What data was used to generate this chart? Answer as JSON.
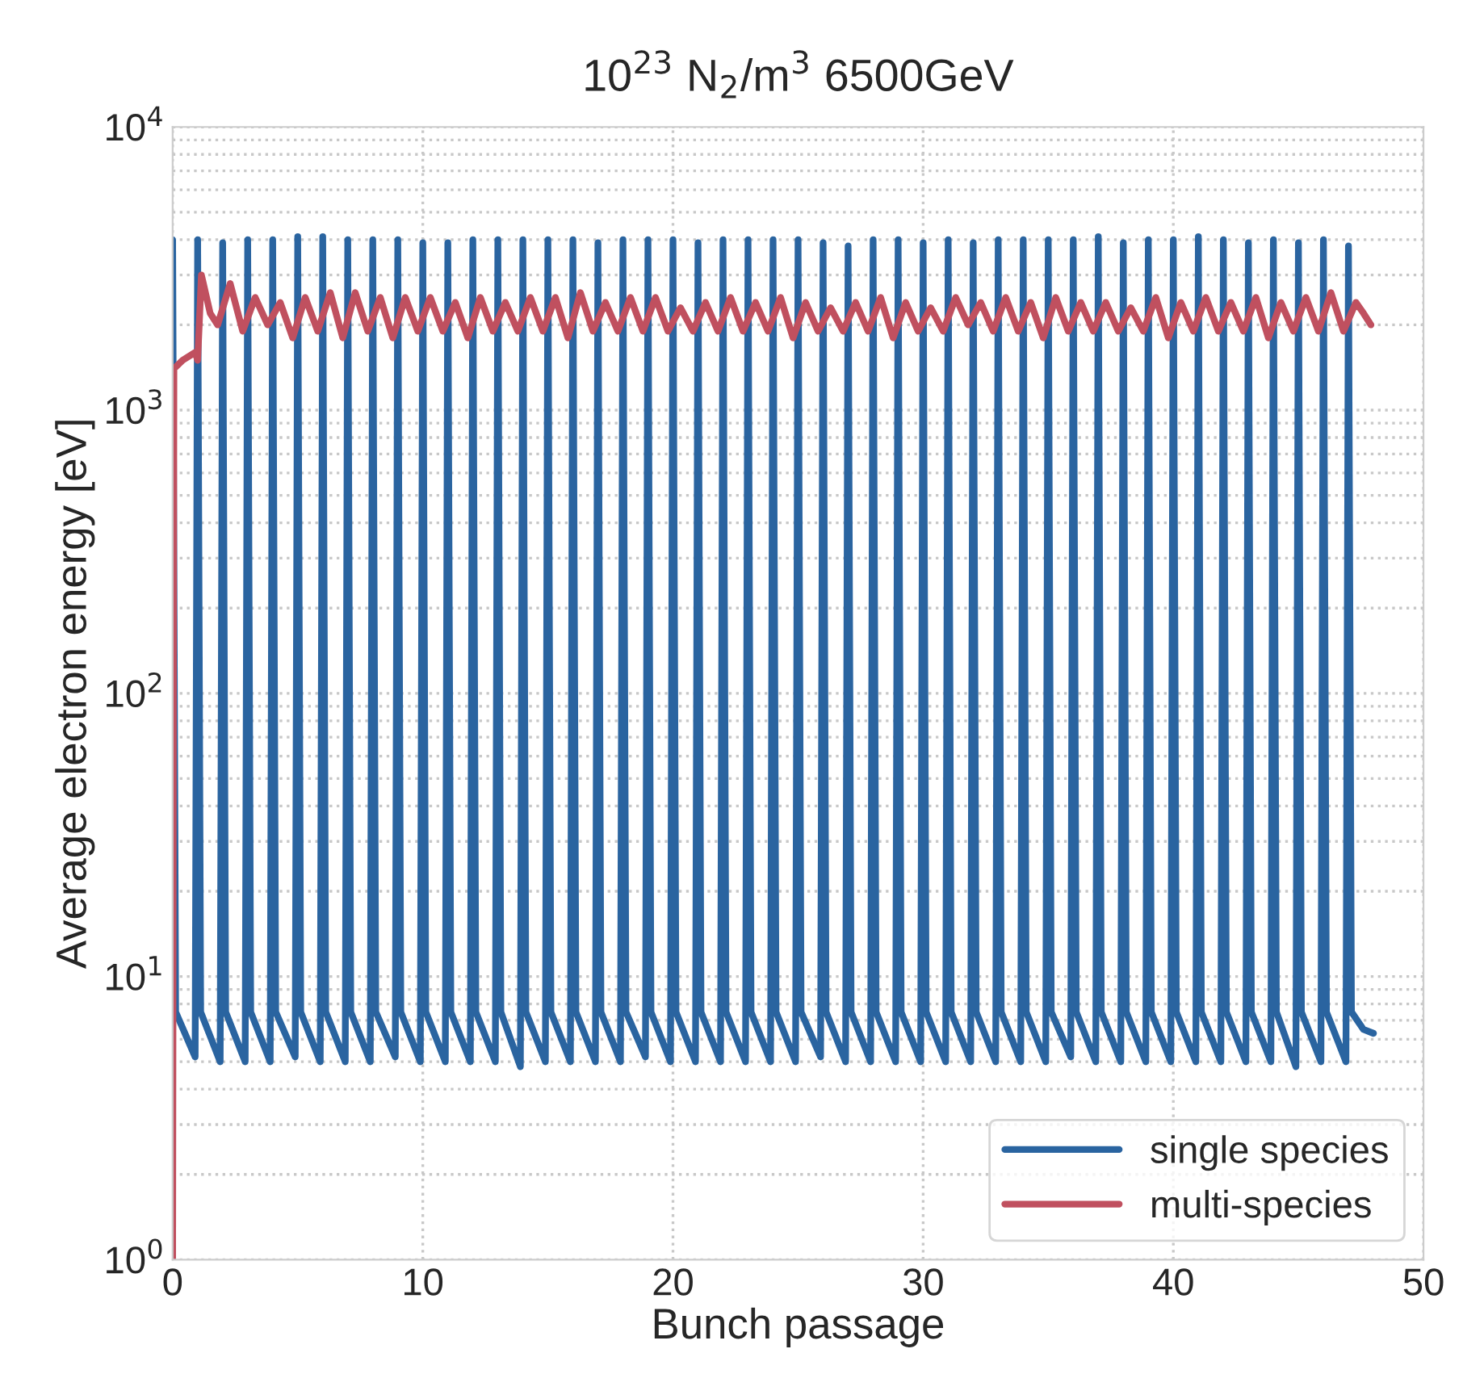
{
  "chart_data": {
    "type": "line",
    "title": "10$^{23}$ N$_{2}$/m$^{3}$ 6500GeV",
    "xlabel": "Bunch passage",
    "ylabel": "Average electron energy [eV]",
    "log": "y",
    "xlim": [
      0,
      50
    ],
    "xticks": [
      0,
      10,
      20,
      30,
      40,
      50
    ],
    "ylim": [
      1,
      10000
    ],
    "yticks": [
      {
        "value": 1,
        "label": "10$^{0}$"
      },
      {
        "value": 10,
        "label": "10$^{1}$"
      },
      {
        "value": 100,
        "label": "10$^{2}$"
      },
      {
        "value": 1000,
        "label": "10$^{3}$"
      },
      {
        "value": 10000,
        "label": "10$^{4}$"
      }
    ],
    "grid": true,
    "legend": "bottom right",
    "line_style": "solid",
    "marker": "none",
    "series": [
      {
        "name": "single species",
        "color": "#2a64a0",
        "x": [
          0,
          0.12,
          0.9,
          1,
          1.12,
          1.9,
          2,
          2.12,
          2.9,
          3,
          3.12,
          3.9,
          4,
          4.12,
          4.9,
          5,
          5.12,
          5.9,
          6,
          6.12,
          6.9,
          7,
          7.12,
          7.9,
          8,
          8.12,
          8.9,
          9,
          9.12,
          9.9,
          10,
          10.12,
          10.9,
          11,
          11.12,
          11.9,
          12,
          12.12,
          12.9,
          13,
          13.12,
          13.9,
          14,
          14.12,
          14.9,
          15,
          15.12,
          15.9,
          16,
          16.12,
          16.9,
          17,
          17.12,
          17.9,
          18,
          18.12,
          18.9,
          19,
          19.12,
          19.9,
          20,
          20.12,
          20.9,
          21,
          21.12,
          21.9,
          22,
          22.12,
          22.9,
          23,
          23.12,
          23.9,
          24,
          24.12,
          24.9,
          25,
          25.12,
          25.9,
          26,
          26.12,
          26.9,
          27,
          27.12,
          27.9,
          28,
          28.12,
          28.9,
          29,
          29.12,
          29.9,
          30,
          30.12,
          30.9,
          31,
          31.12,
          31.9,
          32,
          32.12,
          32.9,
          33,
          33.12,
          33.9,
          34,
          34.12,
          34.9,
          35,
          35.12,
          35.9,
          36,
          36.12,
          36.9,
          37,
          37.12,
          37.9,
          38,
          38.12,
          38.9,
          39,
          39.12,
          39.9,
          40,
          40.12,
          40.9,
          41,
          41.12,
          41.9,
          42,
          42.12,
          42.9,
          43,
          43.12,
          43.9,
          44,
          44.12,
          44.9,
          45,
          45.12,
          45.9,
          46,
          46.12,
          46.9,
          47,
          47.12,
          47.6,
          48
        ],
        "values": [
          4000,
          7.5,
          5.2,
          4000,
          7.5,
          5,
          3900,
          7.5,
          5,
          4000,
          7.5,
          5,
          4000,
          7.5,
          5.2,
          4100,
          7.5,
          5,
          4100,
          7.5,
          5,
          4000,
          7.5,
          5,
          4000,
          7.5,
          5.2,
          4000,
          7.5,
          5,
          3900,
          7.5,
          5,
          3900,
          7.5,
          5,
          4000,
          7.5,
          5,
          4000,
          7.5,
          4.8,
          4000,
          7.5,
          5,
          4000,
          7.5,
          5,
          4000,
          7.5,
          5,
          3900,
          7.5,
          5,
          4000,
          7.5,
          5.2,
          4000,
          7.5,
          5,
          4000,
          7.5,
          5,
          3900,
          7.5,
          5,
          4000,
          7.5,
          5,
          4000,
          7.5,
          5,
          4000,
          7.5,
          5,
          4000,
          7.5,
          5.2,
          3900,
          7.5,
          5,
          3800,
          7.5,
          5,
          4000,
          7.5,
          5,
          4000,
          7.5,
          5,
          3900,
          7.5,
          5,
          4000,
          7.5,
          5,
          3900,
          7.5,
          5,
          4000,
          7.5,
          5,
          4000,
          7.5,
          5,
          4000,
          7.5,
          5.2,
          4000,
          7.5,
          5,
          4100,
          7.5,
          5,
          3900,
          7.5,
          5,
          4000,
          7.5,
          5,
          4000,
          7.5,
          5,
          4100,
          7.5,
          5,
          4000,
          7.5,
          5,
          3900,
          7.5,
          5,
          4000,
          7.5,
          4.8,
          3900,
          7.5,
          5,
          4000,
          7.5,
          5,
          3800,
          7.5,
          6.5,
          6.3
        ]
      },
      {
        "name": "multi-species",
        "color": "#c0505f",
        "x": [
          0,
          0.05,
          0.4,
          0.9,
          1.0,
          1.15,
          1.5,
          1.8,
          2.3,
          2.8,
          3.3,
          3.8,
          4.3,
          4.8,
          5.3,
          5.8,
          6.3,
          6.8,
          7.3,
          7.8,
          8.3,
          8.8,
          9.3,
          9.8,
          10.3,
          10.8,
          11.3,
          11.8,
          12.3,
          12.8,
          13.3,
          13.8,
          14.3,
          14.8,
          15.3,
          15.8,
          16.3,
          16.8,
          17.3,
          17.8,
          18.3,
          18.8,
          19.3,
          19.8,
          20.3,
          20.8,
          21.3,
          21.8,
          22.3,
          22.8,
          23.3,
          23.8,
          24.3,
          24.8,
          25.3,
          25.8,
          26.3,
          26.8,
          27.3,
          27.8,
          28.3,
          28.8,
          29.3,
          29.8,
          30.3,
          30.8,
          31.3,
          31.8,
          32.3,
          32.8,
          33.3,
          33.8,
          34.3,
          34.8,
          35.3,
          35.8,
          36.3,
          36.8,
          37.3,
          37.8,
          38.3,
          38.8,
          39.3,
          39.8,
          40.3,
          40.8,
          41.3,
          41.8,
          42.3,
          42.8,
          43.3,
          43.8,
          44.3,
          44.8,
          45.3,
          45.8,
          46.3,
          46.8,
          47.3,
          47.6,
          47.9
        ],
        "values": [
          1,
          1400,
          1500,
          1600,
          1500,
          3000,
          2200,
          2000,
          2800,
          1900,
          2500,
          2000,
          2400,
          1800,
          2500,
          1900,
          2600,
          1800,
          2600,
          1900,
          2500,
          1800,
          2500,
          1900,
          2500,
          1900,
          2400,
          1800,
          2500,
          1900,
          2400,
          1900,
          2500,
          1900,
          2500,
          1800,
          2600,
          1900,
          2400,
          1900,
          2500,
          1900,
          2500,
          1900,
          2300,
          1900,
          2400,
          1900,
          2500,
          1900,
          2400,
          1900,
          2500,
          1800,
          2400,
          1900,
          2300,
          1900,
          2400,
          1900,
          2500,
          1800,
          2400,
          1900,
          2300,
          1900,
          2500,
          2000,
          2400,
          1900,
          2500,
          1900,
          2400,
          1800,
          2500,
          1900,
          2400,
          1900,
          2400,
          1900,
          2300,
          1900,
          2500,
          1800,
          2400,
          1900,
          2500,
          1900,
          2400,
          1900,
          2500,
          1800,
          2400,
          1900,
          2500,
          1900,
          2600,
          1900,
          2400,
          2200,
          2000
        ]
      }
    ]
  }
}
